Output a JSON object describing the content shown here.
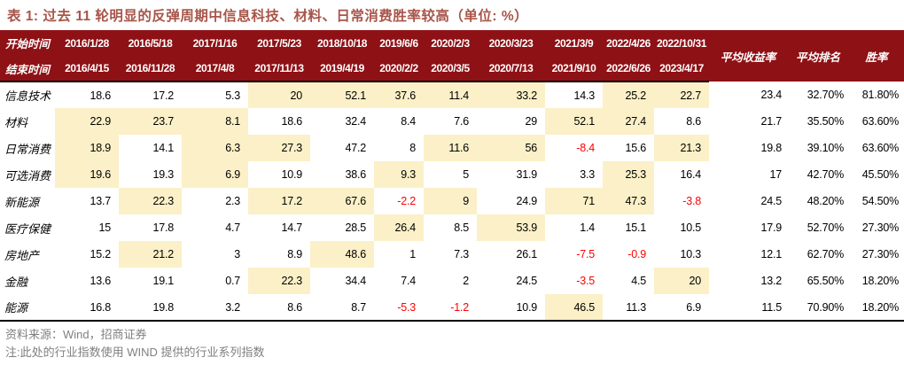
{
  "title": "表 1: 过去 11 轮明显的反弹周期中信息科技、材料、日常消费胜率较高（单位: %）",
  "table": {
    "header": {
      "start_label": "开始时间",
      "end_label": "结束时间",
      "periods": [
        {
          "start": "2016/1/28",
          "end": "2016/4/15"
        },
        {
          "start": "2016/5/18",
          "end": "2016/11/28"
        },
        {
          "start": "2017/1/16",
          "end": "2017/4/8"
        },
        {
          "start": "2017/5/23",
          "end": "2017/11/13"
        },
        {
          "start": "2018/10/18",
          "end": "2019/4/19"
        },
        {
          "start": "2019/6/6",
          "end": "2020/2/2"
        },
        {
          "start": "2020/2/3",
          "end": "2020/3/5"
        },
        {
          "start": "2020/3/23",
          "end": "2020/7/13"
        },
        {
          "start": "2021/3/9",
          "end": "2021/9/10"
        },
        {
          "start": "2022/4/26",
          "end": "2022/6/26"
        },
        {
          "start": "2022/10/31",
          "end": "2023/4/17"
        }
      ],
      "summary_headers": [
        "平均收益率",
        "平均排名",
        "胜率"
      ]
    },
    "rows": [
      {
        "label": "信息技术",
        "values": [
          "18.6",
          "17.2",
          "5.3",
          "20",
          "52.1",
          "37.6",
          "11.4",
          "33.2",
          "14.3",
          "25.2",
          "22.7"
        ],
        "highlight": [
          3,
          4,
          5,
          6,
          7,
          9,
          10
        ],
        "avg_return": "23.4",
        "avg_rank": "32.70%",
        "win_rate": "81.80%"
      },
      {
        "label": "材料",
        "values": [
          "22.9",
          "23.7",
          "8.1",
          "18.6",
          "32.4",
          "8.4",
          "7.6",
          "29",
          "52.1",
          "27.4",
          "8.6"
        ],
        "highlight": [
          0,
          1,
          2,
          8,
          9
        ],
        "avg_return": "21.7",
        "avg_rank": "35.50%",
        "win_rate": "63.60%"
      },
      {
        "label": "日常消费",
        "values": [
          "18.9",
          "14.1",
          "6.3",
          "27.3",
          "47.2",
          "8",
          "11.6",
          "56",
          "-8.4",
          "15.6",
          "21.3"
        ],
        "highlight": [
          0,
          2,
          3,
          6,
          7,
          10
        ],
        "avg_return": "19.8",
        "avg_rank": "39.10%",
        "win_rate": "63.60%"
      },
      {
        "label": "可选消费",
        "values": [
          "19.6",
          "19.3",
          "6.9",
          "10.9",
          "38.6",
          "9.3",
          "5",
          "31.9",
          "3.3",
          "25.3",
          "16.4"
        ],
        "highlight": [
          0,
          2,
          5,
          9
        ],
        "avg_return": "17",
        "avg_rank": "42.70%",
        "win_rate": "45.50%"
      },
      {
        "label": "新能源",
        "values": [
          "13.7",
          "22.3",
          "2.3",
          "17.2",
          "67.6",
          "-2.2",
          "9",
          "24.9",
          "71",
          "47.3",
          "-3.8"
        ],
        "highlight": [
          1,
          3,
          4,
          6,
          8,
          9
        ],
        "avg_return": "24.5",
        "avg_rank": "48.20%",
        "win_rate": "54.50%"
      },
      {
        "label": "医疗保健",
        "values": [
          "15",
          "17.8",
          "4.7",
          "14.7",
          "28.5",
          "26.4",
          "8.5",
          "53.9",
          "1.4",
          "15.1",
          "10.5"
        ],
        "highlight": [
          5,
          7
        ],
        "avg_return": "17.9",
        "avg_rank": "52.70%",
        "win_rate": "27.30%"
      },
      {
        "label": "房地产",
        "values": [
          "15.2",
          "21.2",
          "3",
          "8.9",
          "48.6",
          "1",
          "7.3",
          "26.1",
          "-7.5",
          "-0.9",
          "10.3"
        ],
        "highlight": [
          1,
          4
        ],
        "avg_return": "12.1",
        "avg_rank": "62.70%",
        "win_rate": "27.30%"
      },
      {
        "label": "金融",
        "values": [
          "13.6",
          "19.1",
          "0.7",
          "22.3",
          "34.4",
          "7.4",
          "2",
          "24.5",
          "-3.5",
          "4.5",
          "20"
        ],
        "highlight": [
          3,
          10
        ],
        "avg_return": "13.2",
        "avg_rank": "65.50%",
        "win_rate": "18.20%"
      },
      {
        "label": "能源",
        "values": [
          "16.8",
          "19.8",
          "3.2",
          "8.6",
          "8.7",
          "-5.3",
          "-1.2",
          "10.9",
          "46.5",
          "11.3",
          "6.9"
        ],
        "highlight": [
          8
        ],
        "avg_return": "11.5",
        "avg_rank": "70.90%",
        "win_rate": "18.20%"
      }
    ]
  },
  "footer": {
    "source": "资料来源：Wind，招商证券",
    "note": "注:此处的行业指数使用 WIND 提供的行业系列指数"
  },
  "colors": {
    "header-bg": "#8E1115",
    "header-text": "#FFFFFF",
    "title-color": "#A85549",
    "highlight-bg": "#FBF0C7",
    "negative-color": "#FF0000",
    "text-color": "#000000",
    "footer-color": "#808080",
    "border-color": "#000000",
    "page-bg": "#FFFFFF"
  }
}
